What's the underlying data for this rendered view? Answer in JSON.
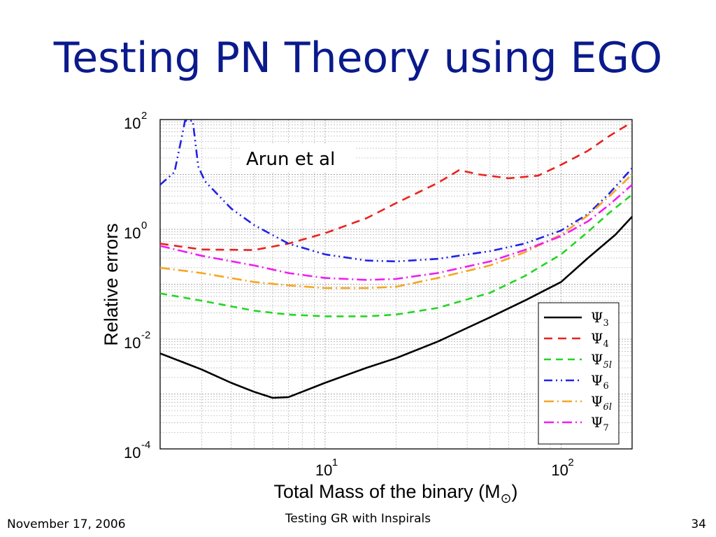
{
  "slide": {
    "title": "Testing PN Theory using EGO",
    "footer_left": "November 17, 2006",
    "footer_center": "Testing GR with Inspirals",
    "footer_right": "34"
  },
  "chart_data": {
    "type": "line",
    "xlabel": "Total Mass of the binary (M",
    "xlabel_symbol": "⊙",
    "xlabel_close": ")",
    "ylabel": "Relative errors",
    "x_scale": "log",
    "y_scale": "log",
    "xlim": [
      2,
      200
    ],
    "ylim": [
      0.0001,
      100
    ],
    "grid": true,
    "x_ticks": [
      {
        "base": "10",
        "exp": "1",
        "value": 10
      },
      {
        "base": "10",
        "exp": "2",
        "value": 100
      }
    ],
    "y_ticks": [
      {
        "base": "10",
        "exp": "2",
        "value": 100
      },
      {
        "base": "10",
        "exp": "0",
        "value": 1
      },
      {
        "base": "10",
        "exp": "-2",
        "value": 0.01
      },
      {
        "base": "10",
        "exp": "-4",
        "value": 0.0001
      }
    ],
    "annotation": "Arun et al",
    "legend_position": "bottom-right",
    "series": [
      {
        "name": "Ψ",
        "sub": "3",
        "color": "#000000",
        "dash": "none",
        "points": [
          [
            2,
            0.0055
          ],
          [
            3,
            0.0028
          ],
          [
            4,
            0.0016
          ],
          [
            5,
            0.0011
          ],
          [
            6,
            0.00085
          ],
          [
            7,
            0.00088
          ],
          [
            8,
            0.0011
          ],
          [
            10,
            0.0016
          ],
          [
            15,
            0.003
          ],
          [
            20,
            0.0045
          ],
          [
            30,
            0.009
          ],
          [
            40,
            0.016
          ],
          [
            50,
            0.025
          ],
          [
            70,
            0.05
          ],
          [
            100,
            0.11
          ],
          [
            130,
            0.3
          ],
          [
            170,
            0.8
          ],
          [
            200,
            1.7
          ]
        ]
      },
      {
        "name": "Ψ",
        "sub": "4",
        "color": "#e8231f",
        "dash": "12,8",
        "points": [
          [
            2,
            0.55
          ],
          [
            3,
            0.43
          ],
          [
            5,
            0.42
          ],
          [
            7,
            0.55
          ],
          [
            10,
            0.85
          ],
          [
            15,
            1.6
          ],
          [
            20,
            3.0
          ],
          [
            30,
            7.0
          ],
          [
            37,
            12
          ],
          [
            45,
            10
          ],
          [
            60,
            8.5
          ],
          [
            80,
            9.5
          ],
          [
            100,
            15
          ],
          [
            130,
            27
          ],
          [
            160,
            50
          ],
          [
            200,
            90
          ]
        ]
      },
      {
        "name": "Ψ",
        "sub": "5l",
        "color": "#22d622",
        "dash": "10,7",
        "points": [
          [
            2,
            0.068
          ],
          [
            3,
            0.05
          ],
          [
            5,
            0.033
          ],
          [
            7,
            0.028
          ],
          [
            10,
            0.026
          ],
          [
            15,
            0.026
          ],
          [
            20,
            0.028
          ],
          [
            30,
            0.037
          ],
          [
            50,
            0.07
          ],
          [
            70,
            0.14
          ],
          [
            100,
            0.35
          ],
          [
            130,
            0.9
          ],
          [
            160,
            2.0
          ],
          [
            200,
            4.3
          ]
        ]
      },
      {
        "name": "Ψ",
        "sub": "6",
        "color": "#2222e6",
        "dash": "12,5,2,5,2,5",
        "points": [
          [
            2,
            6.5
          ],
          [
            2.3,
            11
          ],
          [
            2.45,
            40
          ],
          [
            2.55,
            95
          ],
          [
            2.75,
            95
          ],
          [
            2.9,
            14
          ],
          [
            3.1,
            7.5
          ],
          [
            4,
            2.4
          ],
          [
            5,
            1.2
          ],
          [
            7,
            0.55
          ],
          [
            10,
            0.35
          ],
          [
            15,
            0.27
          ],
          [
            20,
            0.26
          ],
          [
            30,
            0.29
          ],
          [
            50,
            0.4
          ],
          [
            70,
            0.55
          ],
          [
            100,
            0.95
          ],
          [
            130,
            1.9
          ],
          [
            160,
            4.5
          ],
          [
            200,
            13
          ]
        ]
      },
      {
        "name": "Ψ",
        "sub": "6l",
        "color": "#f5a623",
        "dash": "14,5,2,5",
        "points": [
          [
            2,
            0.2
          ],
          [
            3,
            0.16
          ],
          [
            5,
            0.11
          ],
          [
            7,
            0.095
          ],
          [
            10,
            0.085
          ],
          [
            15,
            0.085
          ],
          [
            20,
            0.09
          ],
          [
            30,
            0.13
          ],
          [
            50,
            0.22
          ],
          [
            70,
            0.38
          ],
          [
            100,
            0.8
          ],
          [
            130,
            1.8
          ],
          [
            160,
            4.0
          ],
          [
            200,
            10
          ]
        ]
      },
      {
        "name": "Ψ",
        "sub": "7",
        "color": "#f01df0",
        "dash": "14,5,2,5",
        "points": [
          [
            2,
            0.5
          ],
          [
            3,
            0.33
          ],
          [
            5,
            0.22
          ],
          [
            7,
            0.16
          ],
          [
            10,
            0.13
          ],
          [
            15,
            0.12
          ],
          [
            20,
            0.125
          ],
          [
            30,
            0.16
          ],
          [
            50,
            0.26
          ],
          [
            70,
            0.42
          ],
          [
            100,
            0.75
          ],
          [
            130,
            1.4
          ],
          [
            160,
            2.8
          ],
          [
            200,
            6.5
          ]
        ]
      }
    ]
  }
}
